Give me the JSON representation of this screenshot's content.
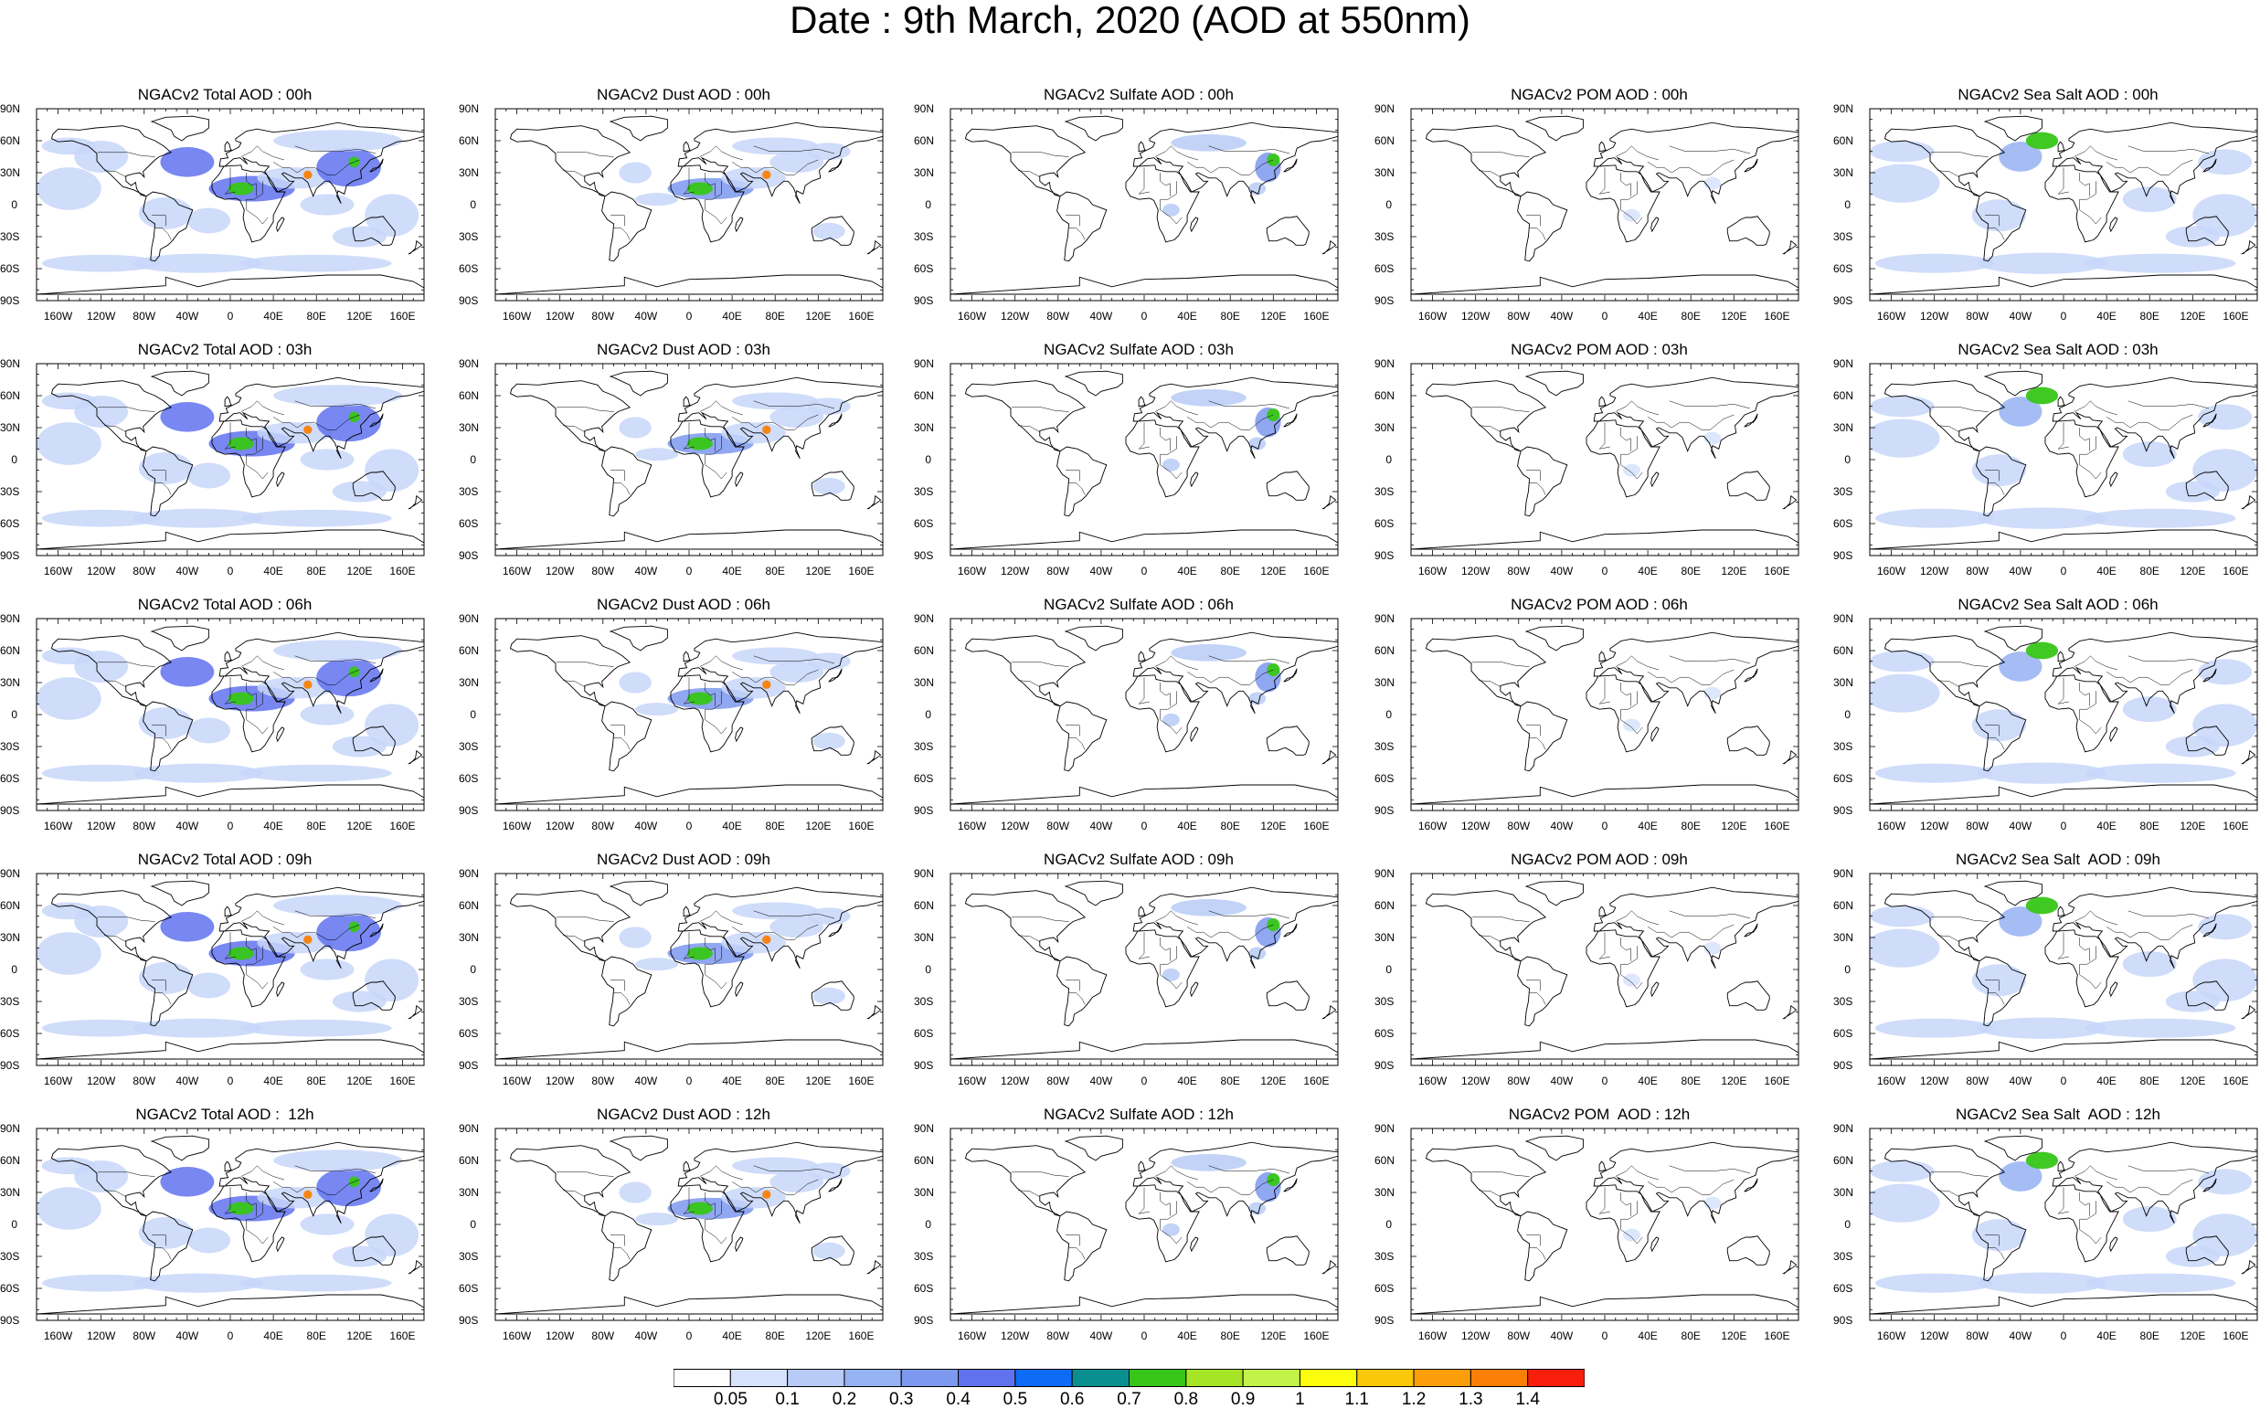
{
  "title": "Date : 9th March, 2020 (AOD at 550nm)",
  "lat_ticks": [
    "90N",
    "60N",
    "30N",
    "0",
    "30S",
    "60S",
    "90S"
  ],
  "lon_ticks": [
    "160W",
    "120W",
    "80W",
    "40W",
    "0",
    "40E",
    "80E",
    "120E",
    "160E"
  ],
  "colorbar": {
    "labels": [
      "0.05",
      "0.1",
      "0.2",
      "0.3",
      "0.4",
      "0.5",
      "0.6",
      "0.7",
      "0.8",
      "0.9",
      "1",
      "1.1",
      "1.2",
      "1.3",
      "1.4"
    ],
    "colors": [
      "#ffffff",
      "#d6e2fb",
      "#b7cbf6",
      "#95b2f2",
      "#7d98ef",
      "#6072ee",
      "#0d6bf5",
      "#0a8f90",
      "#37c617",
      "#a6e427",
      "#c3f249",
      "#fcfc0d",
      "#fbc709",
      "#fb9e09",
      "#f97f07",
      "#f71e0b"
    ]
  },
  "columns": [
    {
      "id": "total",
      "fill": "#c7d6f9",
      "hot": "#6072ee"
    },
    {
      "id": "dust",
      "fill": "#c7d6f9",
      "hot": "#7d98ef"
    },
    {
      "id": "sulfate",
      "fill": "#b7cbf6",
      "hot": "#7d98ef"
    },
    {
      "id": "pom",
      "fill": "#d6e2fb",
      "hot": "#b7cbf6"
    },
    {
      "id": "seasalt",
      "fill": "#c7d6f9",
      "hot": "#95b2f2"
    }
  ],
  "panels": [
    [
      "NGACv2 Total AOD : 00h",
      "NGACv2 Dust AOD : 00h",
      "NGACv2 Sulfate AOD : 00h",
      "NGACv2 POM AOD : 00h",
      "NGACv2 Sea Salt AOD : 00h"
    ],
    [
      "NGACv2 Total AOD : 03h",
      "NGACv2 Dust AOD : 03h",
      "NGACv2 Sulfate AOD : 03h",
      "NGACv2 POM AOD : 03h",
      "NGACv2 Sea Salt AOD : 03h"
    ],
    [
      "NGACv2 Total AOD : 06h",
      "NGACv2 Dust AOD : 06h",
      "NGACv2 Sulfate AOD : 06h",
      "NGACv2 POM AOD : 06h",
      "NGACv2 Sea Salt AOD : 06h"
    ],
    [
      "NGACv2 Total AOD : 09h",
      "NGACv2 Dust AOD : 09h",
      "NGACv2 Sulfate AOD : 09h",
      "NGACv2 POM AOD : 09h",
      "NGACv2 Sea Salt  AOD : 09h"
    ],
    [
      "NGACv2 Total AOD :  12h",
      "NGACv2 Dust AOD : 12h",
      "NGACv2 Sulfate AOD : 12h",
      "NGACv2 POM  AOD : 12h",
      "NGACv2 Sea Salt  AOD : 12h"
    ]
  ]
}
